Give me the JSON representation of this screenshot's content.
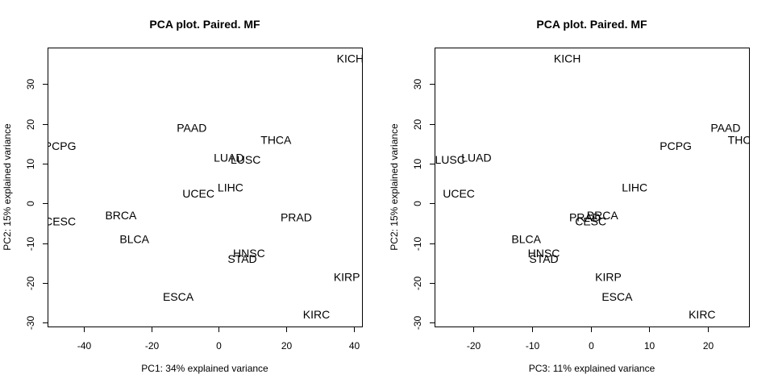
{
  "chart_data": [
    {
      "type": "scatter",
      "title": "PCA plot. Paired. MF",
      "xlabel": "PC1: 34% explained variance",
      "ylabel": "PC2: 15% explained variance",
      "xlim": [
        -50.5,
        42.5
      ],
      "ylim": [
        -31,
        39
      ],
      "xticks": [
        -40,
        -20,
        0,
        20,
        40
      ],
      "yticks": [
        -30,
        -20,
        -10,
        0,
        10,
        20,
        30
      ],
      "points": [
        {
          "label": "KICH",
          "x": 39,
          "y": 36.5
        },
        {
          "label": "PAAD",
          "x": -8,
          "y": 19
        },
        {
          "label": "THCA",
          "x": 17,
          "y": 16
        },
        {
          "label": "PCPG",
          "x": -47,
          "y": 14.5
        },
        {
          "label": "LUAD",
          "x": 3,
          "y": 11.5
        },
        {
          "label": "LUSC",
          "x": 8,
          "y": 11
        },
        {
          "label": "LIHC",
          "x": 3.5,
          "y": 4
        },
        {
          "label": "UCEC",
          "x": -6,
          "y": 2.5
        },
        {
          "label": "BRCA",
          "x": -29,
          "y": -3
        },
        {
          "label": "CESC",
          "x": -47,
          "y": -4.5
        },
        {
          "label": "PRAD",
          "x": 23,
          "y": -3.5
        },
        {
          "label": "BLCA",
          "x": -25,
          "y": -9
        },
        {
          "label": "HNSC",
          "x": 9,
          "y": -12.5
        },
        {
          "label": "STAD",
          "x": 7,
          "y": -14
        },
        {
          "label": "KIRP",
          "x": 38,
          "y": -18.5
        },
        {
          "label": "ESCA",
          "x": -12,
          "y": -23.5
        },
        {
          "label": "KIRC",
          "x": 29,
          "y": -28
        }
      ]
    },
    {
      "type": "scatter",
      "title": "PCA plot. Paired. MF",
      "xlabel": "PC3: 11% explained variance",
      "ylabel": "PC2: 15% explained variance",
      "xlim": [
        -26.5,
        27
      ],
      "ylim": [
        -31,
        39
      ],
      "xticks": [
        -20,
        -10,
        0,
        10,
        20
      ],
      "yticks": [
        -30,
        -20,
        -10,
        0,
        10,
        20,
        30
      ],
      "points": [
        {
          "label": "KICH",
          "x": -4,
          "y": 36.5
        },
        {
          "label": "PAAD",
          "x": 23,
          "y": 19
        },
        {
          "label": "THCA",
          "x": 26,
          "y": 16
        },
        {
          "label": "PCPG",
          "x": 14.5,
          "y": 14.5
        },
        {
          "label": "LUAD",
          "x": -19.5,
          "y": 11.5
        },
        {
          "label": "LUSC",
          "x": -24,
          "y": 11
        },
        {
          "label": "LIHC",
          "x": 7.5,
          "y": 4
        },
        {
          "label": "UCEC",
          "x": -22.5,
          "y": 2.5
        },
        {
          "label": "PRAD",
          "x": -1,
          "y": -3.5
        },
        {
          "label": "BRCA",
          "x": 2,
          "y": -3
        },
        {
          "label": "CESC",
          "x": 0,
          "y": -4.5
        },
        {
          "label": "BLCA",
          "x": -11,
          "y": -9
        },
        {
          "label": "HNSC",
          "x": -8,
          "y": -12.5
        },
        {
          "label": "STAD",
          "x": -8,
          "y": -14
        },
        {
          "label": "KIRP",
          "x": 3,
          "y": -18.5
        },
        {
          "label": "ESCA",
          "x": 4.5,
          "y": -23.5
        },
        {
          "label": "KIRC",
          "x": 19,
          "y": -28
        }
      ]
    }
  ]
}
